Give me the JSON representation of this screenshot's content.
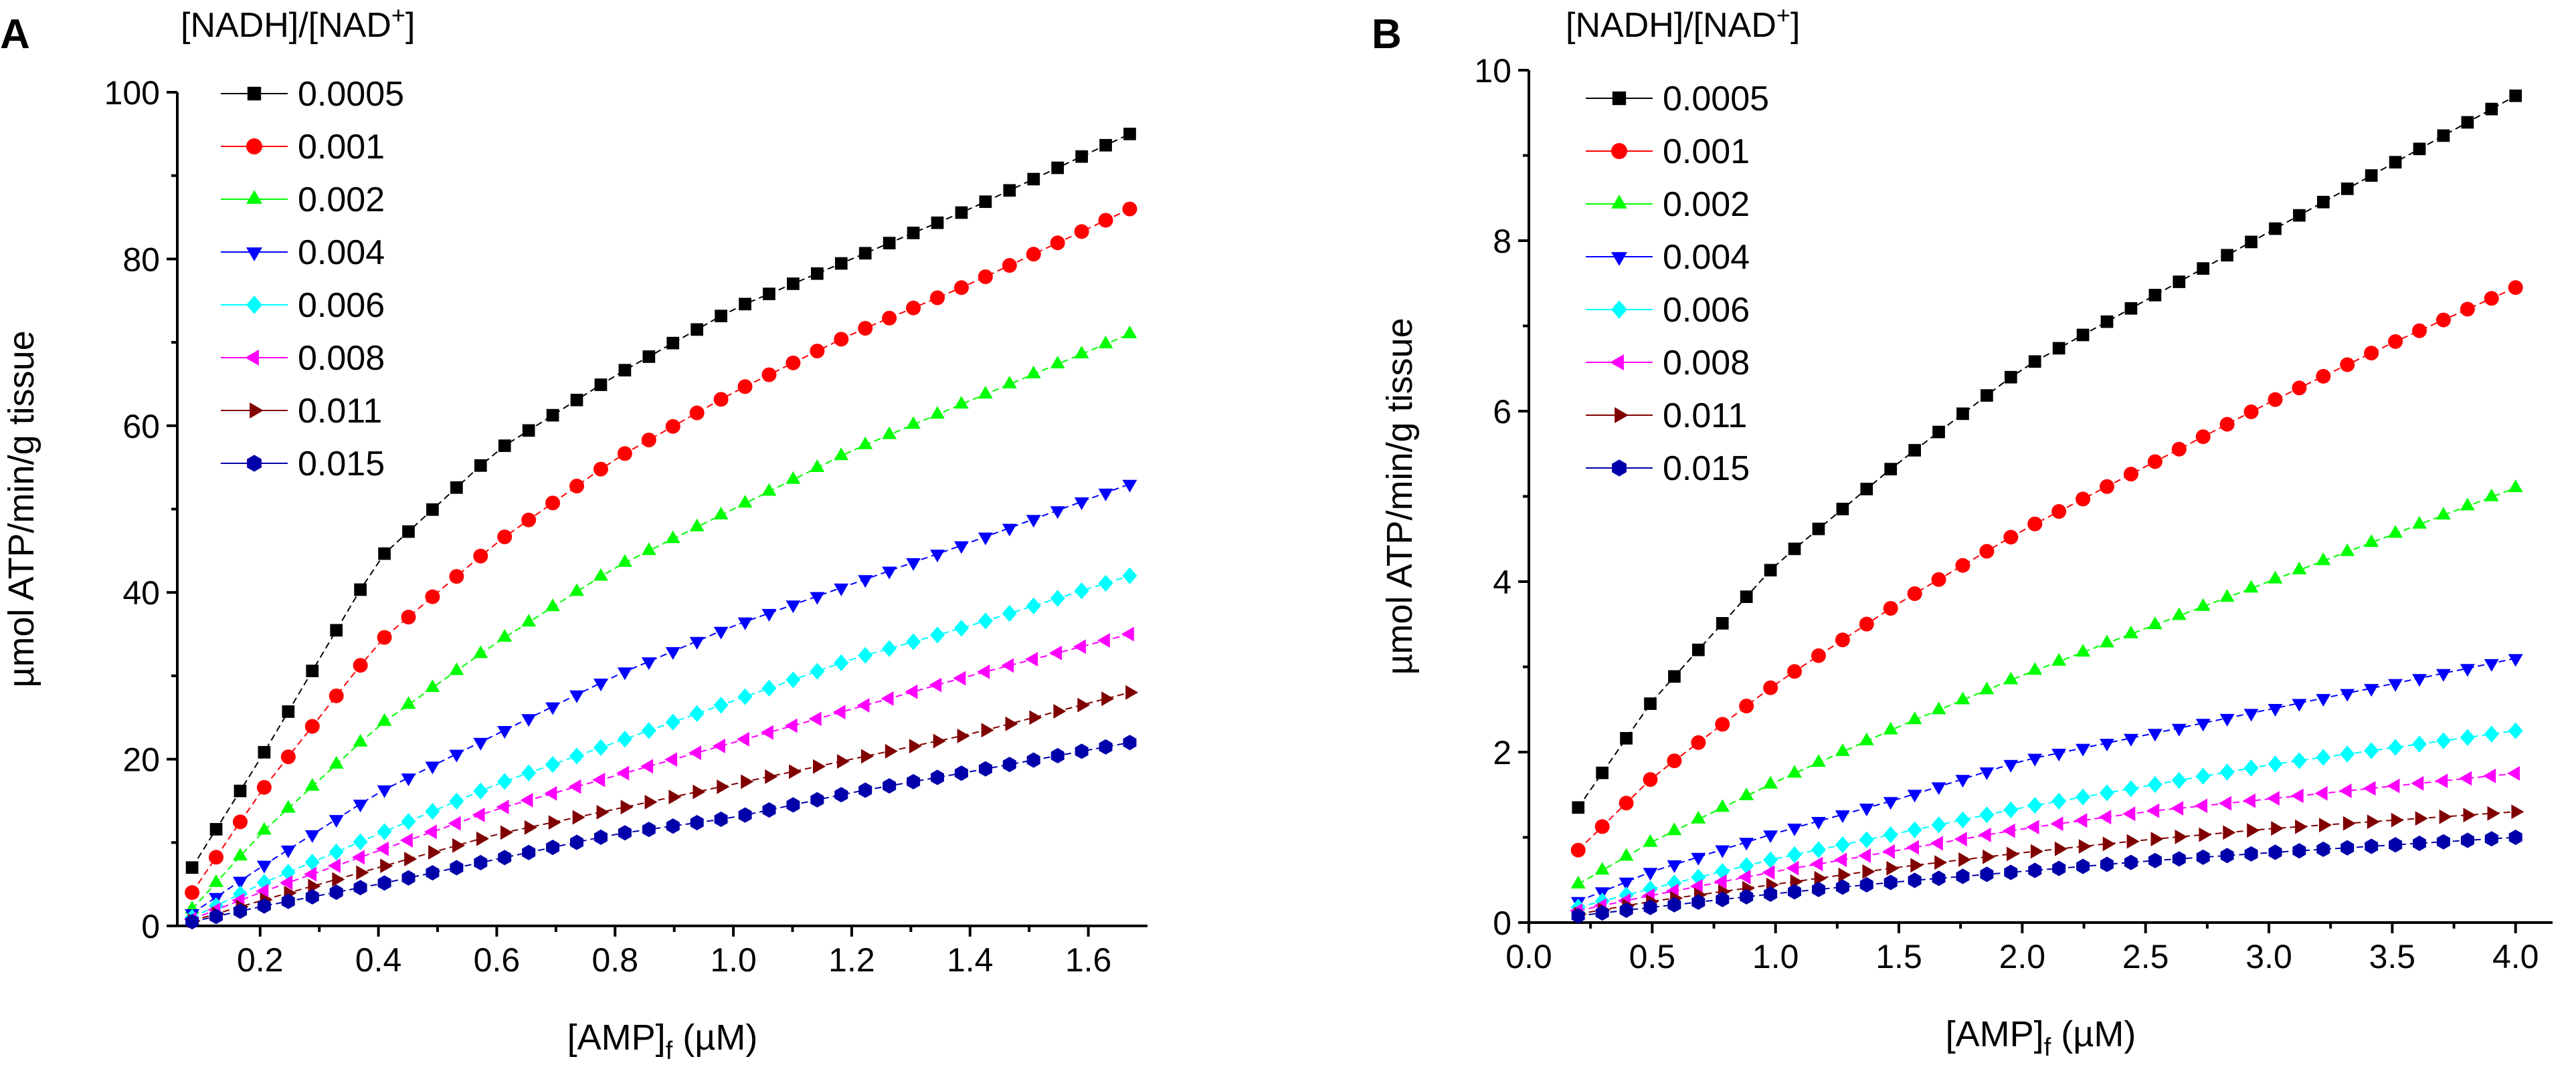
{
  "chart_data": [
    {
      "type": "scatter",
      "panel_label": "A",
      "legend_title_prefix": "[NADH]/[NAD",
      "legend_title_sup": "+",
      "legend_title_suffix": "]",
      "xlabel_prefix": "[AMP]",
      "xlabel_sub": "f",
      "xlabel_suffix": " (µM)",
      "ylabel": "µmol ATP/min/g tissue",
      "xlim": [
        0.06,
        1.7
      ],
      "ylim": [
        0,
        100
      ],
      "xticks": [
        0.2,
        0.4,
        0.6,
        0.8,
        1.0,
        1.2,
        1.4,
        1.6
      ],
      "xtick_labels": [
        "0.2",
        "0.4",
        "0.6",
        "0.8",
        "1.0",
        "1.2",
        "1.4",
        "1.6"
      ],
      "yticks": [
        0,
        20,
        40,
        60,
        80,
        100
      ],
      "ytick_labels": [
        "0",
        "20",
        "40",
        "60",
        "80",
        "100"
      ],
      "x_start": 0.085,
      "x_end": 1.67,
      "n_points": 40,
      "series": [
        {
          "name": "0.0005",
          "marker": "square",
          "color": "#000000",
          "points": [
            [
              0.085,
              7
            ],
            [
              0.2,
              20
            ],
            [
              0.4,
              44
            ],
            [
              0.6,
              57
            ],
            [
              0.8,
              66
            ],
            [
              1.0,
              74
            ],
            [
              1.2,
              80
            ],
            [
              1.4,
              86
            ],
            [
              1.67,
              95
            ]
          ]
        },
        {
          "name": "0.001",
          "marker": "circle",
          "color": "#ff0000",
          "points": [
            [
              0.085,
              4
            ],
            [
              0.2,
              16
            ],
            [
              0.4,
              34
            ],
            [
              0.6,
              46
            ],
            [
              0.8,
              56
            ],
            [
              1.0,
              64
            ],
            [
              1.2,
              71
            ],
            [
              1.4,
              77
            ],
            [
              1.67,
              86
            ]
          ]
        },
        {
          "name": "0.002",
          "marker": "triangle-up",
          "color": "#00ff00",
          "points": [
            [
              0.085,
              2
            ],
            [
              0.2,
              11
            ],
            [
              0.4,
              24
            ],
            [
              0.6,
              34
            ],
            [
              0.8,
              43
            ],
            [
              1.0,
              50
            ],
            [
              1.2,
              57
            ],
            [
              1.4,
              63
            ],
            [
              1.67,
              71
            ]
          ]
        },
        {
          "name": "0.004",
          "marker": "triangle-down",
          "color": "#0000ff",
          "points": [
            [
              0.085,
              1.5
            ],
            [
              0.2,
              7
            ],
            [
              0.4,
              16
            ],
            [
              0.6,
              23
            ],
            [
              0.8,
              30
            ],
            [
              1.0,
              36
            ],
            [
              1.2,
              41
            ],
            [
              1.4,
              46
            ],
            [
              1.67,
              53
            ]
          ]
        },
        {
          "name": "0.006",
          "marker": "diamond",
          "color": "#00ffff",
          "points": [
            [
              0.085,
              1
            ],
            [
              0.2,
              5
            ],
            [
              0.4,
              11
            ],
            [
              0.6,
              17
            ],
            [
              0.8,
              22
            ],
            [
              1.0,
              27
            ],
            [
              1.2,
              32
            ],
            [
              1.4,
              36
            ],
            [
              1.67,
              42
            ]
          ]
        },
        {
          "name": "0.008",
          "marker": "triangle-left",
          "color": "#ff00ff",
          "points": [
            [
              0.085,
              0.8
            ],
            [
              0.2,
              4
            ],
            [
              0.4,
              9
            ],
            [
              0.6,
              14
            ],
            [
              0.8,
              18
            ],
            [
              1.0,
              22
            ],
            [
              1.2,
              26
            ],
            [
              1.4,
              30
            ],
            [
              1.67,
              35
            ]
          ]
        },
        {
          "name": "0.011",
          "marker": "triangle-right",
          "color": "#800000",
          "points": [
            [
              0.085,
              0.6
            ],
            [
              0.2,
              3
            ],
            [
              0.4,
              7
            ],
            [
              0.6,
              11
            ],
            [
              0.8,
              14
            ],
            [
              1.0,
              17
            ],
            [
              1.2,
              20
            ],
            [
              1.4,
              23
            ],
            [
              1.67,
              28
            ]
          ]
        },
        {
          "name": "0.015",
          "marker": "hexagon",
          "color": "#0000aa",
          "points": [
            [
              0.085,
              0.5
            ],
            [
              0.2,
              2.3
            ],
            [
              0.4,
              5
            ],
            [
              0.6,
              8
            ],
            [
              0.8,
              11
            ],
            [
              1.0,
              13
            ],
            [
              1.2,
              16
            ],
            [
              1.4,
              18.5
            ],
            [
              1.67,
              22
            ]
          ]
        }
      ]
    },
    {
      "type": "scatter",
      "panel_label": "B",
      "legend_title_prefix": "[NADH]/[NAD",
      "legend_title_sup": "+",
      "legend_title_suffix": "]",
      "xlabel_prefix": "[AMP]",
      "xlabel_sub": "f",
      "xlabel_suffix": " (µM)",
      "ylabel": "µmol ATP/min/g tissue",
      "xlim": [
        0,
        4.15
      ],
      "ylim": [
        0,
        10
      ],
      "xticks": [
        0.0,
        0.5,
        1.0,
        1.5,
        2.0,
        2.5,
        3.0,
        3.5,
        4.0
      ],
      "xtick_labels": [
        "0.0",
        "0.5",
        "1.0",
        "1.5",
        "2.0",
        "2.5",
        "3.0",
        "3.5",
        "4.0"
      ],
      "yticks": [
        0,
        2,
        4,
        6,
        8,
        10
      ],
      "ytick_labels": [
        "0",
        "2",
        "4",
        "6",
        "8",
        "10"
      ],
      "x_start": 0.2,
      "x_end": 4.0,
      "n_points": 40,
      "series": [
        {
          "name": "0.0005",
          "marker": "square",
          "color": "#000000",
          "points": [
            [
              0.2,
              1.35
            ],
            [
              0.5,
              2.6
            ],
            [
              1.0,
              4.2
            ],
            [
              1.5,
              5.4
            ],
            [
              2.0,
              6.5
            ],
            [
              2.5,
              7.3
            ],
            [
              3.0,
              8.1
            ],
            [
              3.5,
              8.9
            ],
            [
              4.0,
              9.7
            ]
          ]
        },
        {
          "name": "0.001",
          "marker": "circle",
          "color": "#ff0000",
          "points": [
            [
              0.2,
              0.85
            ],
            [
              0.5,
              1.7
            ],
            [
              1.0,
              2.8
            ],
            [
              1.5,
              3.75
            ],
            [
              2.0,
              4.6
            ],
            [
              2.5,
              5.35
            ],
            [
              3.0,
              6.1
            ],
            [
              3.5,
              6.8
            ],
            [
              4.0,
              7.45
            ]
          ]
        },
        {
          "name": "0.002",
          "marker": "triangle-up",
          "color": "#00ff00",
          "points": [
            [
              0.2,
              0.45
            ],
            [
              0.5,
              0.95
            ],
            [
              1.0,
              1.65
            ],
            [
              1.5,
              2.3
            ],
            [
              2.0,
              2.9
            ],
            [
              2.5,
              3.45
            ],
            [
              3.0,
              4.0
            ],
            [
              3.5,
              4.55
            ],
            [
              4.0,
              5.1
            ]
          ]
        },
        {
          "name": "0.004",
          "marker": "triangle-down",
          "color": "#0000ff",
          "points": [
            [
              0.2,
              0.25
            ],
            [
              0.5,
              0.6
            ],
            [
              1.0,
              1.05
            ],
            [
              1.5,
              1.45
            ],
            [
              2.0,
              1.9
            ],
            [
              2.5,
              2.2
            ],
            [
              3.0,
              2.5
            ],
            [
              3.5,
              2.8
            ],
            [
              4.0,
              3.1
            ]
          ]
        },
        {
          "name": "0.006",
          "marker": "diamond",
          "color": "#00ffff",
          "points": [
            [
              0.2,
              0.18
            ],
            [
              0.5,
              0.4
            ],
            [
              1.0,
              0.75
            ],
            [
              1.5,
              1.05
            ],
            [
              2.0,
              1.35
            ],
            [
              2.5,
              1.6
            ],
            [
              3.0,
              1.85
            ],
            [
              3.5,
              2.05
            ],
            [
              4.0,
              2.25
            ]
          ]
        },
        {
          "name": "0.008",
          "marker": "triangle-left",
          "color": "#ff00ff",
          "points": [
            [
              0.2,
              0.14
            ],
            [
              0.5,
              0.32
            ],
            [
              1.0,
              0.6
            ],
            [
              1.5,
              0.85
            ],
            [
              2.0,
              1.1
            ],
            [
              2.5,
              1.3
            ],
            [
              3.0,
              1.45
            ],
            [
              3.5,
              1.6
            ],
            [
              4.0,
              1.75
            ]
          ]
        },
        {
          "name": "0.011",
          "marker": "triangle-right",
          "color": "#800000",
          "points": [
            [
              0.2,
              0.1
            ],
            [
              0.5,
              0.25
            ],
            [
              1.0,
              0.45
            ],
            [
              1.5,
              0.65
            ],
            [
              2.0,
              0.82
            ],
            [
              2.5,
              0.97
            ],
            [
              3.0,
              1.1
            ],
            [
              3.5,
              1.2
            ],
            [
              4.0,
              1.3
            ]
          ]
        },
        {
          "name": "0.015",
          "marker": "hexagon",
          "color": "#0000aa",
          "points": [
            [
              0.2,
              0.08
            ],
            [
              0.5,
              0.18
            ],
            [
              1.0,
              0.34
            ],
            [
              1.5,
              0.48
            ],
            [
              2.0,
              0.6
            ],
            [
              2.5,
              0.72
            ],
            [
              3.0,
              0.82
            ],
            [
              3.5,
              0.91
            ],
            [
              4.0,
              1.0
            ]
          ]
        }
      ]
    }
  ]
}
